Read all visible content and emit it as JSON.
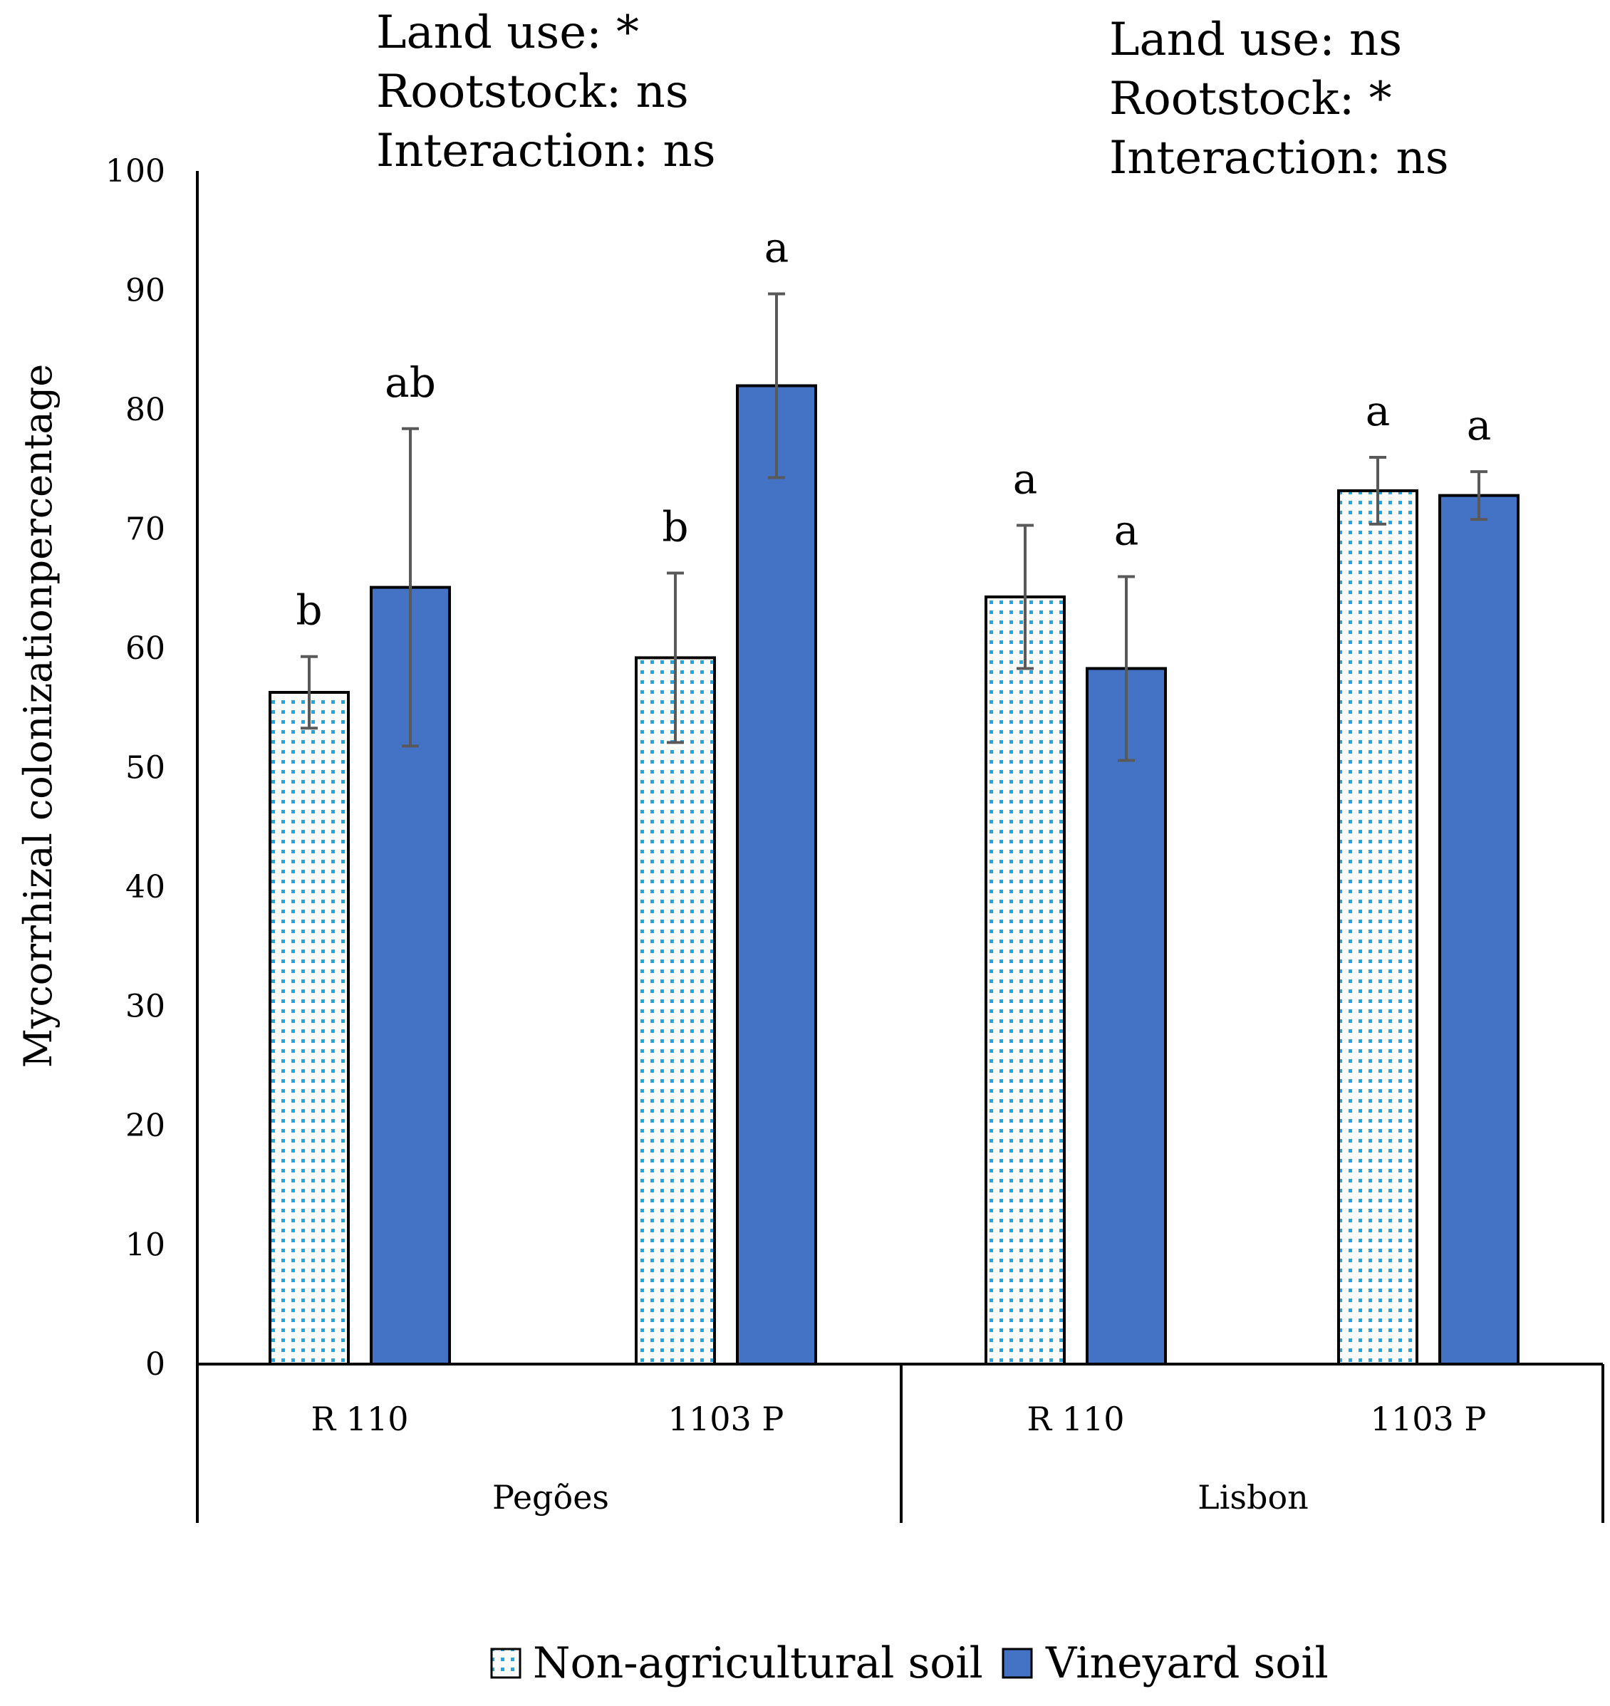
{
  "chart_data": {
    "type": "bar",
    "ylabel": "Mycorrhizal colonizationpercentage",
    "ylim": [
      0,
      100
    ],
    "yticks": [
      "0",
      "10",
      "20",
      "30",
      "40",
      "50",
      "60",
      "70",
      "80",
      "90",
      "100"
    ],
    "groups": [
      {
        "name": "Pegões",
        "annotations": [
          "Land use: *",
          "Rootstock: ns",
          "Interaction: ns"
        ],
        "categories": [
          "R 110",
          "1103 P"
        ]
      },
      {
        "name": "Lisbon",
        "annotations": [
          "Land use: ns",
          "Rootstock: *",
          "Interaction: ns"
        ],
        "categories": [
          "R 110",
          "1103 P"
        ]
      }
    ],
    "x_labels": [
      "R 110",
      "1103 P",
      "R 110",
      "1103 P"
    ],
    "series": [
      {
        "name": "Non-agricultural soil",
        "color": "#1ea7e6",
        "pattern": "dotted",
        "values": [
          56.3,
          59.2,
          64.3,
          73.2
        ],
        "error": [
          3.0,
          7.1,
          6.0,
          2.8
        ],
        "letters": [
          "b",
          "b",
          "a",
          "a"
        ]
      },
      {
        "name": "Vineyard soil",
        "color": "#4472c4",
        "pattern": "solid",
        "values": [
          65.1,
          82.0,
          58.3,
          72.8
        ],
        "error": [
          13.3,
          7.7,
          7.7,
          2.0
        ],
        "letters": [
          "ab",
          "a",
          "a",
          "a"
        ]
      }
    ],
    "legend_position": "bottom"
  }
}
